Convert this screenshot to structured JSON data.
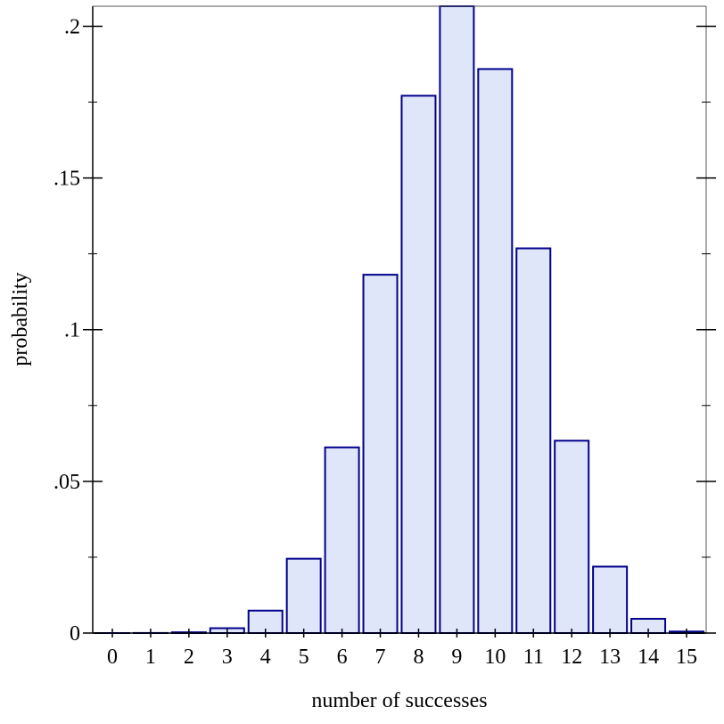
{
  "chart_data": {
    "type": "bar",
    "title": "",
    "xlabel": "number of successes",
    "ylabel": "probability",
    "categories": [
      "0",
      "1",
      "2",
      "3",
      "4",
      "5",
      "6",
      "7",
      "8",
      "9",
      "10",
      "11",
      "12",
      "13",
      "14",
      "15"
    ],
    "values": [
      1e-06,
      2.5e-05,
      0.00025,
      0.0016,
      0.0074,
      0.0245,
      0.0612,
      0.1181,
      0.1771,
      0.2066,
      0.1859,
      0.1268,
      0.0634,
      0.0219,
      0.0047,
      0.0005
    ],
    "ylim": [
      0,
      0.2066
    ],
    "y_ticks": [
      0,
      0.05,
      0.1,
      0.15,
      0.2
    ],
    "y_tick_labels": [
      "0",
      ".05",
      ".1",
      ".15",
      ".2"
    ],
    "grid": false,
    "colors": {
      "bar_fill": "#e0e6fa",
      "bar_stroke": "#00008b"
    }
  }
}
